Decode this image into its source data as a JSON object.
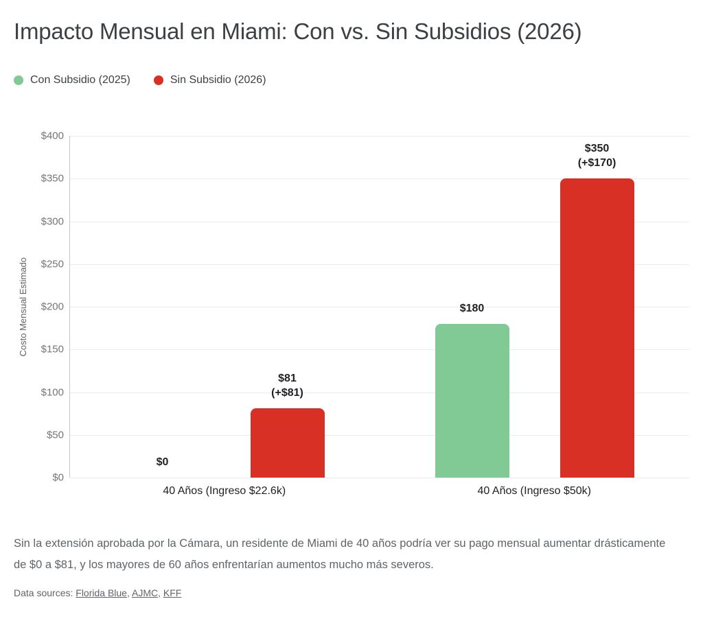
{
  "title": "Impacto Mensual en Miami: Con vs. Sin Subsidios (2026)",
  "legend": {
    "items": [
      {
        "label": "Con Subsidio (2025)",
        "color": "#81c995"
      },
      {
        "label": "Sin Subsidio (2026)",
        "color": "#d93025"
      }
    ]
  },
  "chart_data": {
    "type": "bar",
    "title": "Impacto Mensual en Miami: Con vs. Sin Subsidios (2026)",
    "categories": [
      "40 Años (Ingreso $22.6k)",
      "40 Años (Ingreso $50k)"
    ],
    "series": [
      {
        "name": "Con Subsidio (2025)",
        "color": "#81c995",
        "values": [
          0,
          180
        ],
        "bar_labels": [
          [
            "$0"
          ],
          [
            "$180"
          ]
        ]
      },
      {
        "name": "Sin Subsidio (2026)",
        "color": "#d93025",
        "values": [
          81,
          350
        ],
        "bar_labels": [
          [
            "$81",
            "(+$81)"
          ],
          [
            "$350",
            "(+$170)"
          ]
        ]
      }
    ],
    "xlabel": "",
    "ylabel": "Costo Mensual Estimado",
    "ylim": [
      0,
      400
    ],
    "y_tick_step": 50,
    "y_ticks": [
      "$0",
      "$50",
      "$100",
      "$150",
      "$200",
      "$250",
      "$300",
      "$350",
      "$400"
    ],
    "grid": "horizontal",
    "legend_position": "top-left"
  },
  "caption": "Sin la extensión aprobada por la Cámara, un residente de Miami de 40 años podría ver su pago mensual aumentar drásticamente de $0 a $81, y los mayores de 60 años enfrentarían aumentos mucho más severos.",
  "sources": {
    "prefix": "Data sources: ",
    "links": [
      "Florida Blue",
      "AJMC",
      "KFF"
    ],
    "sep": ", "
  }
}
